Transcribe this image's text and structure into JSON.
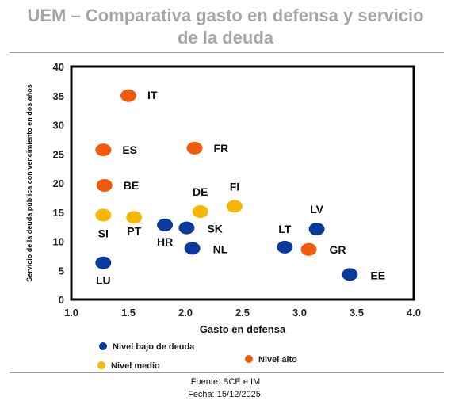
{
  "title_line1": "UEM – Comparativa gasto en defensa y servicio",
  "title_line2": "de la deuda",
  "footer": {
    "source": "Fuente: BCE e IM",
    "date": "Fecha: 15/12/2025."
  },
  "colors": {
    "bajo": "#0b3a9e",
    "medio": "#f5b800",
    "alto": "#f05a0a"
  },
  "chart_data": {
    "type": "scatter",
    "xlabel": "Gasto en defensa",
    "ylabel": "Servicio de la deuda pública con vencimiento en dos años",
    "xlim": [
      1.0,
      4.0
    ],
    "ylim": [
      0,
      40
    ],
    "xticks": [
      "1.0",
      "1.5",
      "2.0",
      "2.5",
      "3.0",
      "3.5",
      "4.0"
    ],
    "yticks": [
      "0",
      "5",
      "10",
      "15",
      "20",
      "25",
      "30",
      "35",
      "40"
    ],
    "grid": false,
    "legend": [
      {
        "key": "bajo",
        "label": "Nivel bajo de deuda"
      },
      {
        "key": "medio",
        "label": "Nivel medio"
      },
      {
        "key": "alto",
        "label": "Nivel alto"
      }
    ],
    "points": [
      {
        "label": "IT",
        "x": 1.5,
        "y": 35.0,
        "group": "alto"
      },
      {
        "label": "ES",
        "x": 1.28,
        "y": 25.7,
        "group": "alto"
      },
      {
        "label": "FR",
        "x": 2.08,
        "y": 26.0,
        "group": "alto"
      },
      {
        "label": "BE",
        "x": 1.29,
        "y": 19.6,
        "group": "alto"
      },
      {
        "label": "GR",
        "x": 3.08,
        "y": 8.6,
        "group": "alto"
      },
      {
        "label": "SI",
        "x": 1.28,
        "y": 14.5,
        "group": "medio"
      },
      {
        "label": "PT",
        "x": 1.55,
        "y": 14.1,
        "group": "medio"
      },
      {
        "label": "DE",
        "x": 2.13,
        "y": 15.1,
        "group": "medio"
      },
      {
        "label": "FI",
        "x": 2.43,
        "y": 16.0,
        "group": "medio"
      },
      {
        "label": "HR",
        "x": 1.82,
        "y": 12.8,
        "group": "bajo"
      },
      {
        "label": "SK",
        "x": 2.01,
        "y": 12.3,
        "group": "bajo"
      },
      {
        "label": "NL",
        "x": 2.06,
        "y": 8.8,
        "group": "bajo"
      },
      {
        "label": "LU",
        "x": 1.28,
        "y": 6.3,
        "group": "bajo"
      },
      {
        "label": "LT",
        "x": 2.87,
        "y": 9.0,
        "group": "bajo"
      },
      {
        "label": "LV",
        "x": 3.15,
        "y": 12.1,
        "group": "bajo"
      },
      {
        "label": "EE",
        "x": 3.44,
        "y": 4.3,
        "group": "bajo"
      }
    ]
  }
}
